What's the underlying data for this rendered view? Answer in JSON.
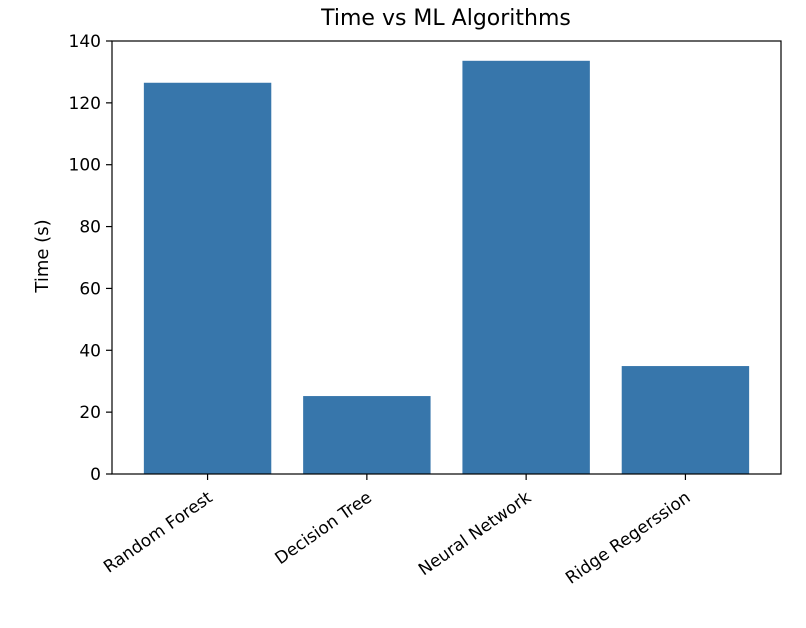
{
  "chart_data": {
    "type": "bar",
    "title": "Time vs ML Algorithms",
    "xlabel": "",
    "ylabel": "Time (s)",
    "categories": [
      "Random Forest",
      "Decision Tree",
      "Neural Network",
      "Ridge Regerssion"
    ],
    "values": [
      126.5,
      25.2,
      133.6,
      34.9
    ],
    "ylim": [
      0,
      140
    ],
    "yticks": [
      0,
      20,
      40,
      60,
      80,
      100,
      120,
      140
    ],
    "bar_color": "#3776ab",
    "grid": false,
    "legend": "none"
  }
}
